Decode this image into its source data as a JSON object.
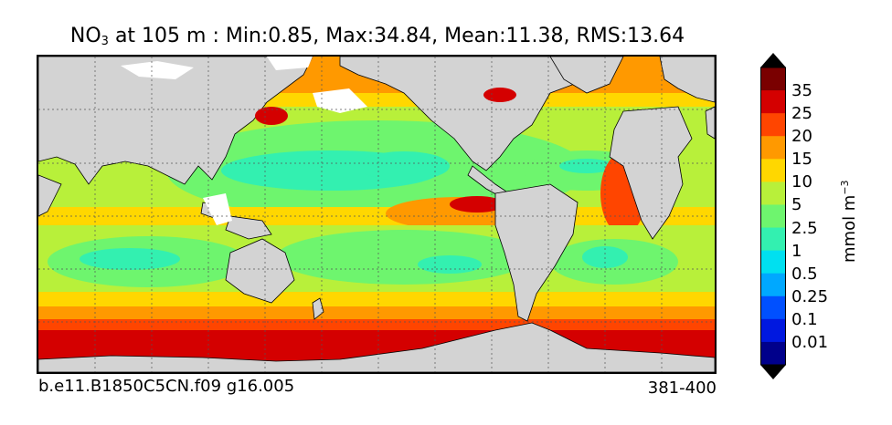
{
  "title": {
    "prefix": "NO",
    "subscript": "3",
    "rest": " at 105 m : Min:0.85, Max:34.84, Mean:11.38, RMS:13.64"
  },
  "footer": {
    "case_name": "b.e11.B1850C5CN.f09 g16.005",
    "years": "381-400"
  },
  "colorbar": {
    "units_base": "mmol m",
    "units_exp": "−3",
    "labels": [
      "35",
      "25",
      "20",
      "15",
      "10",
      "5",
      "2.5",
      "1",
      "0.5",
      "0.25",
      "0.1",
      "0.01"
    ],
    "colors": [
      "#7a0000",
      "#d40000",
      "#ff4500",
      "#ff9900",
      "#ffd700",
      "#b8f03a",
      "#6ef56e",
      "#33f0b0",
      "#00e0f0",
      "#00a8ff",
      "#0050ff",
      "#0018e0",
      "#00008b"
    ],
    "extend_top_color": "#000000",
    "extend_bottom_color": "#000000"
  },
  "map": {
    "land_color": "#d3d3d3",
    "missing_color": "#ffffff",
    "gridlines": "dotted"
  }
}
